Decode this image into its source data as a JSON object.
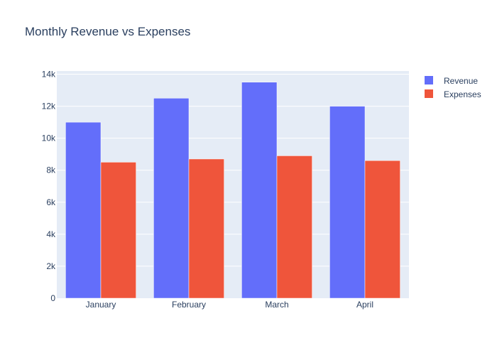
{
  "chart_data": {
    "type": "bar",
    "title": "Monthly Revenue vs Expenses",
    "xlabel": "",
    "ylabel": "",
    "categories": [
      "January",
      "February",
      "March",
      "April"
    ],
    "series": [
      {
        "name": "Revenue",
        "values": [
          11000,
          12500,
          13500,
          12000
        ],
        "color": "#636efa"
      },
      {
        "name": "Expenses",
        "values": [
          8500,
          8700,
          8900,
          8600
        ],
        "color": "#ef553b"
      }
    ],
    "ylim": [
      0,
      14200
    ],
    "yticks": [
      0,
      2000,
      4000,
      6000,
      8000,
      10000,
      12000,
      14000
    ],
    "ytick_labels": [
      "0",
      "2k",
      "4k",
      "6k",
      "8k",
      "10k",
      "12k",
      "14k"
    ],
    "grid": true,
    "legend_position": "top-right",
    "plot_background": "#e5ecf6",
    "grid_color": "#ffffff",
    "text_color": "#2a3f5f"
  }
}
